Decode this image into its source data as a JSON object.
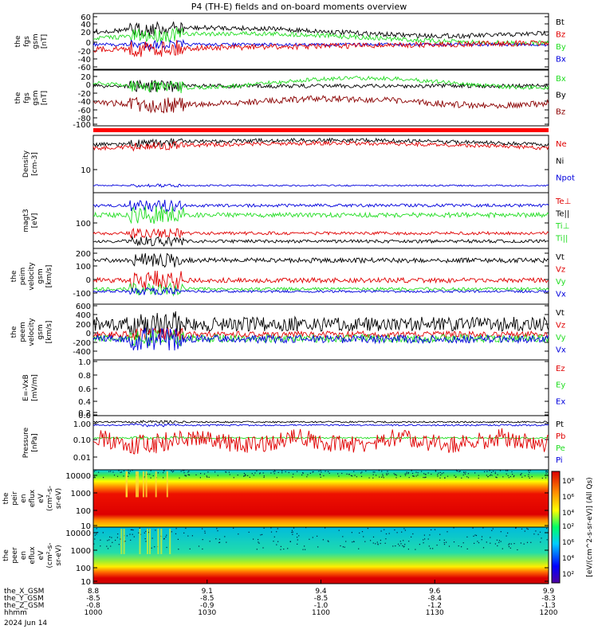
{
  "title": "P4 (TH-E) fields and on-board moments overview",
  "colors": {
    "black": "#000000",
    "red": "#e00000",
    "green": "#22dd22",
    "blue": "#0000dd",
    "darkred": "#8b0000"
  },
  "panels": [
    {
      "id": "fgs",
      "ylabel": [
        "the",
        "fgs",
        "gsm",
        "[nT]"
      ],
      "ticks": [
        "60",
        "40",
        "20",
        "0",
        "-20",
        "-40",
        "-60"
      ],
      "legend": [
        {
          "name": "Bt",
          "color": "#000000"
        },
        {
          "name": "Bz",
          "color": "#e00000"
        },
        {
          "name": "By",
          "color": "#22dd22"
        },
        {
          "name": "Bx",
          "color": "#0000dd"
        }
      ]
    },
    {
      "id": "fgs_dsl",
      "ylabel": [
        "the",
        "fgs",
        "gsm",
        "[nT]"
      ],
      "ticks": [
        "20",
        "0",
        "-20",
        "-40",
        "-60",
        "-80",
        "-100"
      ],
      "legend": [
        {
          "name": "Bx",
          "color": "#22dd22"
        },
        {
          "name": "By",
          "color": "#000000"
        },
        {
          "name": "Bz",
          "color": "#8b0000"
        }
      ]
    },
    {
      "id": "density",
      "ylabel": [
        "Density",
        "[cm-3]"
      ],
      "ticks": [
        "10"
      ],
      "legend": [
        {
          "name": "Ne",
          "color": "#e00000"
        },
        {
          "name": "Ni",
          "color": "#000000"
        },
        {
          "name": "Npot",
          "color": "#0000dd"
        }
      ]
    },
    {
      "id": "temp",
      "ylabel": [
        "magt3",
        "[eV]"
      ],
      "ticks": [
        "100"
      ],
      "legend": [
        {
          "name": "Te⊥",
          "color": "#e00000"
        },
        {
          "name": "Te||",
          "color": "#000000"
        },
        {
          "name": "Ti⊥",
          "color": "#22dd22"
        },
        {
          "name": "Ti||",
          "color": "#22dd22"
        }
      ]
    },
    {
      "id": "peim",
      "ylabel": [
        "the",
        "peim",
        "velocity",
        "gsm",
        "[km/s]"
      ],
      "ticks": [
        "200",
        "100",
        "0",
        "-100"
      ],
      "legend": [
        {
          "name": "Vt",
          "color": "#000000"
        },
        {
          "name": "Vz",
          "color": "#e00000"
        },
        {
          "name": "Vy",
          "color": "#22dd22"
        },
        {
          "name": "Vx",
          "color": "#0000dd"
        }
      ]
    },
    {
      "id": "peem",
      "ylabel": [
        "the",
        "peem",
        "velocity",
        "gsm",
        "[km/s]"
      ],
      "ticks": [
        "600",
        "400",
        "200",
        "0",
        "-200",
        "-400"
      ],
      "legend": [
        {
          "name": "Vt",
          "color": "#000000"
        },
        {
          "name": "Vz",
          "color": "#e00000"
        },
        {
          "name": "Vy",
          "color": "#22dd22"
        },
        {
          "name": "Vx",
          "color": "#0000dd"
        }
      ]
    },
    {
      "id": "efield",
      "ylabel": [
        "E=-VxB",
        "[mV/m]"
      ],
      "ticks": [
        "1.0",
        "0.8",
        "0.6",
        "0.4",
        "0.2",
        "0.0"
      ],
      "legend": [
        {
          "name": "Ez",
          "color": "#e00000"
        },
        {
          "name": "Ey",
          "color": "#22dd22"
        },
        {
          "name": "Ex",
          "color": "#0000dd"
        }
      ]
    },
    {
      "id": "pressure",
      "ylabel": [
        "Pressure",
        "[nPa]"
      ],
      "ticks": [
        "1.00",
        "0.10",
        "0.01"
      ],
      "legend": [
        {
          "name": "Pt",
          "color": "#000000"
        },
        {
          "name": "Pb",
          "color": "#e00000"
        },
        {
          "name": "Pe",
          "color": "#22dd22"
        },
        {
          "name": "Pi",
          "color": "#0000dd"
        }
      ]
    },
    {
      "id": "peir",
      "ylabel": [
        "the",
        "peir",
        "en",
        "eflux",
        "eV",
        "(cm²-s-",
        "sr-eV)"
      ],
      "ticks": [
        "10000",
        "1000",
        "100",
        "10"
      ],
      "legend": []
    },
    {
      "id": "peer",
      "ylabel": [
        "the",
        "peer",
        "en",
        "eflux",
        "eV",
        "(cm²-s-",
        "sr-eV)"
      ],
      "ticks": [
        "10000",
        "1000",
        "100",
        "10"
      ],
      "legend": []
    }
  ],
  "colorbar": {
    "ticks": [
      "10⁸",
      "10⁶",
      "10⁴",
      "10²",
      "10⁶",
      "10⁴",
      "10²"
    ],
    "label": "[eV/(cm^2-s-sr-eV)] (All Qs)"
  },
  "xaxis": {
    "rows": [
      {
        "name": "the_X_GSM",
        "values": [
          "8.8",
          "9.1",
          "9.4",
          "9.6",
          "9.9"
        ]
      },
      {
        "name": "the_Y_GSM",
        "values": [
          "-8.5",
          "-8.5",
          "-8.5",
          "-8.4",
          "-8.3"
        ]
      },
      {
        "name": "the_Z_GSM",
        "values": [
          "-0.8",
          "-0.9",
          "-1.0",
          "-1.2",
          "-1.3"
        ]
      },
      {
        "name": "hhmm",
        "values": [
          "1000",
          "1030",
          "1100",
          "1130",
          "1200"
        ]
      }
    ],
    "date": "2024 Jun 14"
  },
  "chart_data": {
    "type": "line",
    "title": "P4 (TH-E) fields and on-board moments overview",
    "x_range": [
      "1000",
      "1200"
    ],
    "series": [
      {
        "name": "Bt",
        "panel": "fgs",
        "values": [
          30,
          45,
          35,
          30,
          25,
          25,
          28,
          30,
          25,
          20
        ]
      },
      {
        "name": "Bz",
        "panel": "fgs",
        "values": [
          -15,
          -20,
          -5,
          0,
          5,
          5,
          10,
          10,
          10,
          12
        ]
      },
      {
        "name": "By",
        "panel": "fgs",
        "values": [
          10,
          30,
          15,
          15,
          15,
          12,
          15,
          20,
          20,
          15
        ]
      },
      {
        "name": "Bx",
        "panel": "fgs",
        "values": [
          -5,
          0,
          -5,
          -10,
          -5,
          -5,
          -5,
          0,
          -5,
          -5
        ]
      },
      {
        "name": "Ne",
        "panel": "density",
        "values": [
          15,
          17,
          18,
          17,
          16,
          16,
          15,
          15,
          16,
          15
        ]
      },
      {
        "name": "Npot",
        "panel": "density",
        "values": [
          2.5,
          2.6,
          2.7,
          2.6,
          2.6,
          2.5,
          2.5,
          2.5,
          2.5,
          2.4
        ]
      },
      {
        "name": "Vt",
        "panel": "peim",
        "values": [
          110,
          150,
          120,
          110,
          110,
          115,
          110,
          120,
          120,
          110
        ]
      },
      {
        "name": "Pt",
        "panel": "pressure",
        "values": [
          0.8,
          0.9,
          0.8,
          0.8,
          0.8,
          0.7,
          0.7,
          0.7,
          0.7,
          0.7
        ]
      },
      {
        "name": "Pe",
        "panel": "pressure",
        "values": [
          0.13,
          0.13,
          0.12,
          0.12,
          0.12,
          0.12,
          0.12,
          0.12,
          0.12,
          0.12
        ]
      }
    ]
  }
}
